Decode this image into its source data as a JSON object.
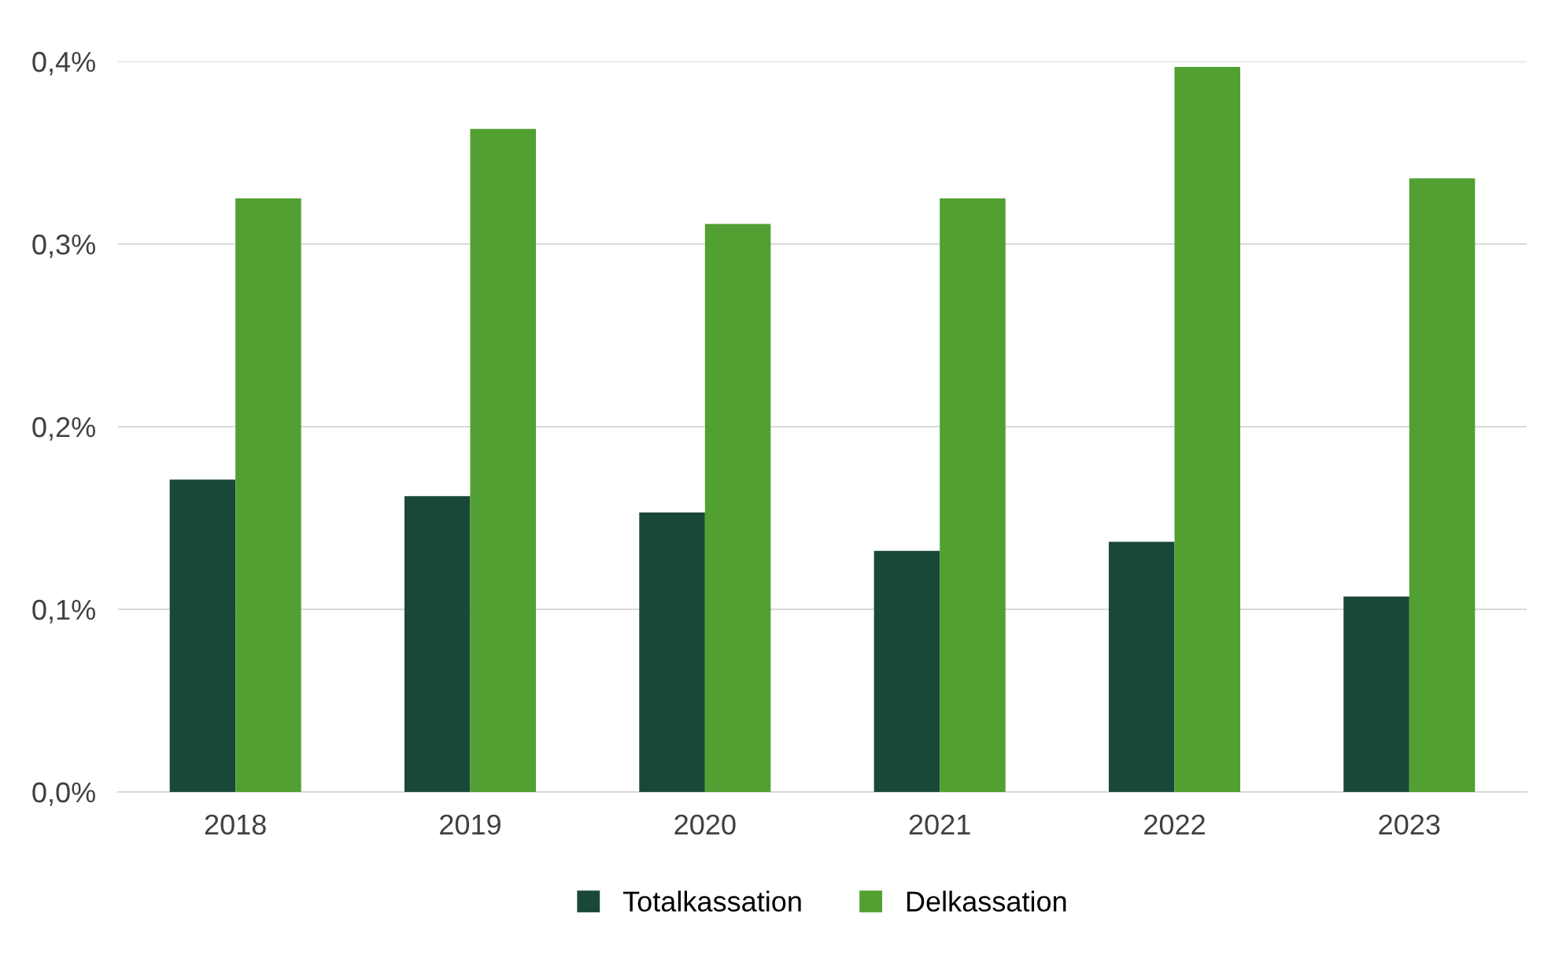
{
  "chart_data": {
    "type": "bar",
    "categories": [
      "2018",
      "2019",
      "2020",
      "2021",
      "2022",
      "2023"
    ],
    "series": [
      {
        "name": "Totalkassation",
        "color": "#1a4838",
        "values": [
          0.171,
          0.162,
          0.153,
          0.132,
          0.137,
          0.107
        ]
      },
      {
        "name": "Delkassation",
        "color": "#52a032",
        "values": [
          0.325,
          0.363,
          0.311,
          0.325,
          0.397,
          0.336
        ]
      }
    ],
    "ylim": [
      0,
      0.4
    ],
    "yticks": [
      {
        "value": 0,
        "label": "0,0%"
      },
      {
        "value": 0.1,
        "label": "0,1%"
      },
      {
        "value": 0.2,
        "label": "0,2%"
      },
      {
        "value": 0.3,
        "label": "0,3%"
      },
      {
        "value": 0.4,
        "label": "0,4%"
      }
    ],
    "grid": "y",
    "legend": "bottom"
  }
}
